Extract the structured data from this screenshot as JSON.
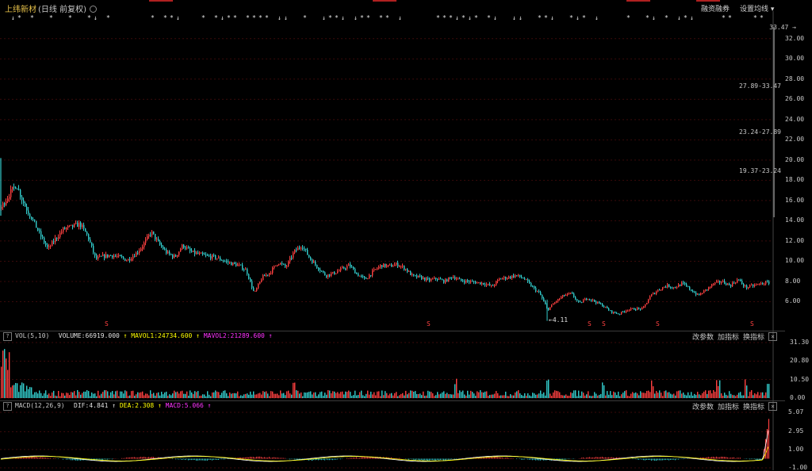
{
  "header": {
    "stock_name": "上纬新材",
    "period": "(日线 前复权)",
    "btn_margin": "融资融券",
    "btn_settings": "设置均线 ▾"
  },
  "colors": {
    "up": "#ff4040",
    "down": "#33cccc",
    "grid": "#3a0000",
    "mavol1": "#ffff00",
    "mavol2": "#ff33ff",
    "dif": "#ffffff",
    "dea": "#ffff00",
    "macd": "#ff33ff"
  },
  "chart_data": [
    {
      "type": "candlestick",
      "name": "price",
      "yticks": [
        "32.00",
        "30.00",
        "28.00",
        "26.00",
        "24.00",
        "22.00",
        "20.00",
        "18.00",
        "16.00",
        "14.00",
        "12.00",
        "10.00",
        "8.00",
        "6.00"
      ],
      "ylim": [
        4,
        33.47
      ],
      "annotations": {
        "high_marker": "33.47",
        "low_marker": "4.11",
        "range_labels": [
          "27.89-33.47",
          "23.24-27.89",
          "19.37-23.24"
        ]
      },
      "s_markers": [
        "S",
        "S",
        "S",
        "S",
        "S",
        "S"
      ],
      "close_path": [
        [
          0,
          15.2
        ],
        [
          10,
          16.5
        ],
        [
          20,
          17.6
        ],
        [
          30,
          15.6
        ],
        [
          40,
          14.2
        ],
        [
          50,
          12.6
        ],
        [
          60,
          11.2
        ],
        [
          70,
          12.3
        ],
        [
          80,
          13.2
        ],
        [
          90,
          13.4
        ],
        [
          100,
          13.7
        ],
        [
          110,
          12.5
        ],
        [
          120,
          10.2
        ],
        [
          130,
          10.5
        ],
        [
          140,
          10.6
        ],
        [
          150,
          10.4
        ],
        [
          160,
          10.1
        ],
        [
          170,
          10.7
        ],
        [
          180,
          11.6
        ],
        [
          190,
          12.9
        ],
        [
          200,
          11.7
        ],
        [
          210,
          10.8
        ],
        [
          220,
          10.4
        ],
        [
          230,
          11.6
        ],
        [
          240,
          10.9
        ],
        [
          250,
          10.7
        ],
        [
          260,
          10.5
        ],
        [
          270,
          10.4
        ],
        [
          280,
          10.1
        ],
        [
          290,
          9.8
        ],
        [
          300,
          9.6
        ],
        [
          310,
          9.1
        ],
        [
          320,
          6.8
        ],
        [
          330,
          8.4
        ],
        [
          340,
          8.9
        ],
        [
          350,
          9.9
        ],
        [
          360,
          9.4
        ],
        [
          370,
          10.9
        ],
        [
          380,
          11.6
        ],
        [
          390,
          10.3
        ],
        [
          400,
          9.4
        ],
        [
          410,
          8.6
        ],
        [
          420,
          8.8
        ],
        [
          430,
          9.2
        ],
        [
          440,
          9.6
        ],
        [
          450,
          8.7
        ],
        [
          460,
          8.2
        ],
        [
          470,
          9.0
        ],
        [
          480,
          9.6
        ],
        [
          490,
          9.5
        ],
        [
          500,
          9.7
        ],
        [
          510,
          9.3
        ],
        [
          520,
          8.5
        ],
        [
          530,
          8.4
        ],
        [
          540,
          8.1
        ],
        [
          550,
          8.3
        ],
        [
          560,
          8.0
        ],
        [
          570,
          8.5
        ],
        [
          580,
          8.1
        ],
        [
          590,
          8.0
        ],
        [
          600,
          7.9
        ],
        [
          610,
          7.8
        ],
        [
          620,
          7.5
        ],
        [
          630,
          8.3
        ],
        [
          640,
          8.4
        ],
        [
          650,
          8.6
        ],
        [
          660,
          8.3
        ],
        [
          670,
          7.5
        ],
        [
          680,
          6.8
        ],
        [
          690,
          5.2
        ],
        [
          700,
          6.0
        ],
        [
          710,
          6.6
        ],
        [
          720,
          6.8
        ],
        [
          730,
          5.8
        ],
        [
          740,
          6.4
        ],
        [
          750,
          6.0
        ],
        [
          760,
          5.6
        ],
        [
          770,
          5.0
        ],
        [
          780,
          4.8
        ],
        [
          790,
          5.2
        ],
        [
          800,
          5.3
        ],
        [
          810,
          5.3
        ],
        [
          820,
          6.6
        ],
        [
          830,
          7.2
        ],
        [
          840,
          7.6
        ],
        [
          850,
          7.4
        ],
        [
          860,
          7.8
        ],
        [
          870,
          7.2
        ],
        [
          880,
          6.6
        ],
        [
          890,
          7.2
        ],
        [
          900,
          7.8
        ],
        [
          910,
          8.0
        ],
        [
          920,
          7.6
        ],
        [
          930,
          8.2
        ],
        [
          940,
          7.4
        ],
        [
          950,
          7.6
        ],
        [
          960,
          7.8
        ],
        [
          970,
          7.9
        ]
      ]
    },
    {
      "type": "bar",
      "name": "volume",
      "label": "VOL(5,10)",
      "legend": {
        "volume": "VOLUME:66919.000",
        "mavol1": "MAVOL1:24734.600",
        "mavol2": "MAVOL2:21289.600"
      },
      "yticks": [
        "31.30",
        "20.80",
        "10.50",
        "0.00"
      ],
      "buttons": [
        "改参数",
        "加指标",
        "换指标"
      ]
    },
    {
      "type": "bar",
      "name": "macd",
      "label": "MACD(12,26,9)",
      "legend": {
        "dif": "DIF:4.841",
        "dea": "DEA:2.308",
        "macd": "MACD:5.066"
      },
      "yticks": [
        "5.07",
        "2.95",
        "1.00",
        "-1.00"
      ],
      "buttons": [
        "改参数",
        "加指标",
        "换指标"
      ]
    }
  ]
}
